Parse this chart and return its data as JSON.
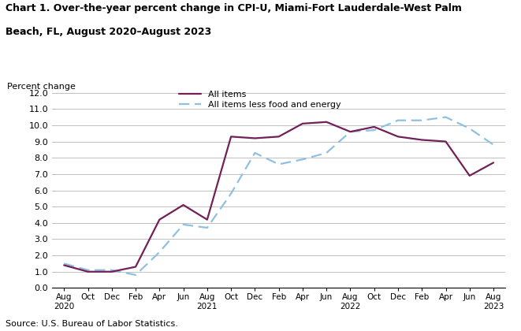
{
  "title_line1": "Chart 1. Over-the-year percent change in CPI-U, Miami-Fort Lauderdale-West Palm",
  "title_line2": "Beach, FL, August 2020–August 2023",
  "ylabel": "Percent change",
  "source": "Source: U.S. Bureau of Labor Statistics.",
  "ylim": [
    0.0,
    12.0
  ],
  "yticks": [
    0.0,
    1.0,
    2.0,
    3.0,
    4.0,
    5.0,
    6.0,
    7.0,
    8.0,
    9.0,
    10.0,
    11.0,
    12.0
  ],
  "all_items_color": "#722057",
  "core_color": "#90c0e0",
  "all_items_label": "All items",
  "core_label": "All items less food and energy",
  "x_labels": [
    "Aug\n2020",
    "Oct",
    "Dec",
    "Feb",
    "Apr",
    "Jun",
    "Aug\n2021",
    "Oct",
    "Dec",
    "Feb",
    "Apr",
    "Jun",
    "Aug\n2022",
    "Oct",
    "Dec",
    "Feb",
    "Apr",
    "Jun",
    "Aug\n2023"
  ],
  "all_items": [
    1.4,
    1.0,
    1.0,
    1.3,
    4.2,
    5.1,
    4.2,
    9.3,
    9.2,
    9.3,
    10.1,
    10.2,
    9.6,
    9.9,
    9.3,
    9.1,
    9.0,
    6.9,
    7.7
  ],
  "core_items": [
    1.5,
    1.1,
    1.1,
    0.8,
    2.2,
    3.9,
    3.7,
    5.8,
    8.3,
    7.6,
    7.9,
    8.3,
    9.6,
    9.7,
    10.3,
    10.3,
    10.5,
    9.8,
    8.8
  ]
}
